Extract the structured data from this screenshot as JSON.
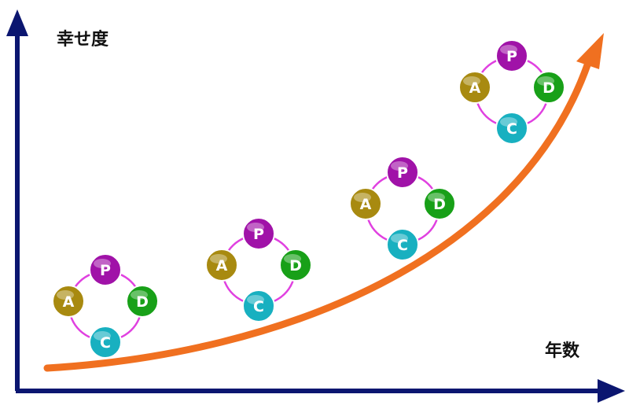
{
  "labels": {
    "y_axis": "幸せ度",
    "x_axis": "年数"
  },
  "colors": {
    "axis": "#0b1670",
    "growth_curve": "#f07020",
    "cycle_arrows": "#e040e0",
    "P": "#a012a8",
    "D": "#18a018",
    "C": "#18b0c0",
    "A": "#a88a10"
  },
  "cycle_letters": [
    "P",
    "D",
    "C",
    "A"
  ],
  "cycles": [
    {
      "name": "cycle-1"
    },
    {
      "name": "cycle-2"
    },
    {
      "name": "cycle-3"
    },
    {
      "name": "cycle-4"
    }
  ]
}
